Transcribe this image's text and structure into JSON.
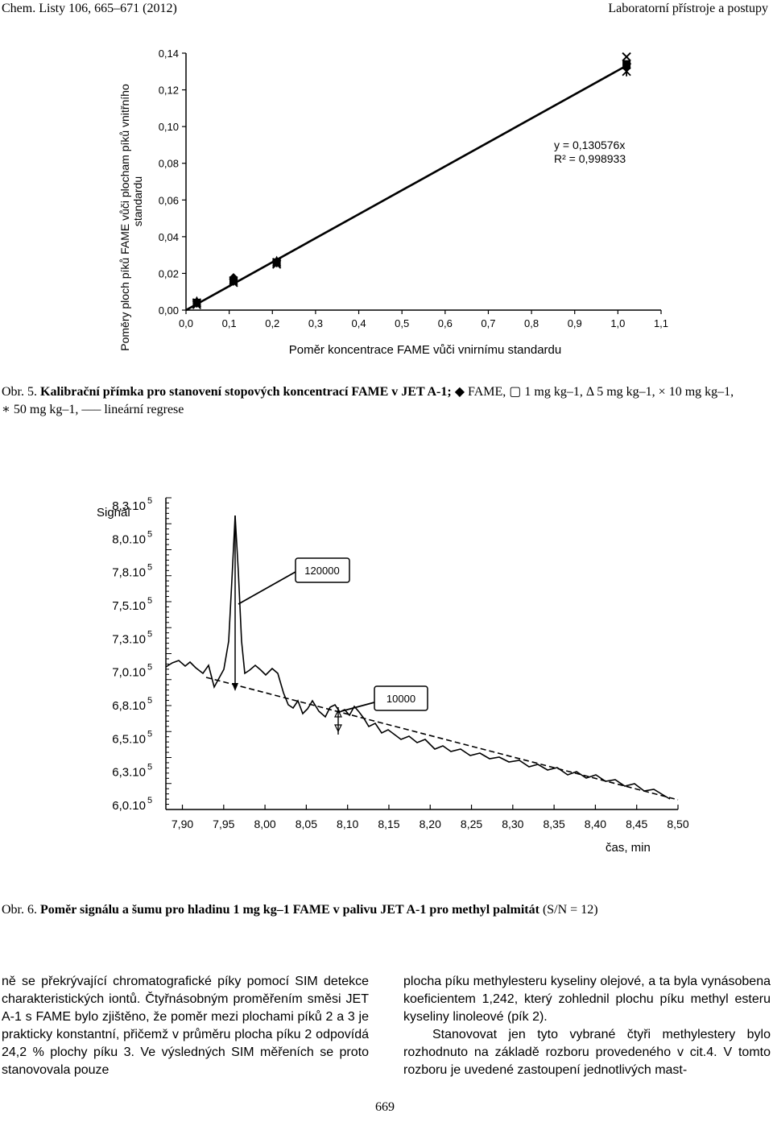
{
  "header": {
    "left": "Chem. Listy 106, 665–671 (2012)",
    "right": "Laboratorní přístroje a postupy"
  },
  "figure5": {
    "ylabel_line1": "Poměry ploch píků FAME vůči plocham píků vnitřního",
    "ylabel_line2": "standardu",
    "xlabel": "Poměr koncentrace FAME vůči vnirnímu standardu",
    "equation": "y = 0,130576x",
    "r2": "R² = 0,998933",
    "caption_prefix": "Obr. 5.",
    "caption_bold": "Kalibrační přímka pro stanovení stopových koncentrací FAME v JET A-1;",
    "caption_line1_rest": "◆ FAME, ▢ 1 mg kg–1, Δ 5 mg kg–1, × 10 mg kg–1,",
    "caption_line2": "∗ 50 mg kg–1, ––– lineární regrese"
  },
  "figure6": {
    "ylabel": "Signál",
    "xlabel": "čas, min",
    "callout_1": "120000",
    "callout_2": "10000",
    "caption_prefix": "Obr. 6.",
    "caption_bold": "Poměr signálu a šumu pro hladinu 1 mg kg–1 FAME v palivu JET A-1 pro methyl palmitát",
    "caption_rest": "(S/N = 12)"
  },
  "body": {
    "left_column": "ně se překrývající chromatografické píky pomocí SIM detekce charakteristických iontů. Čtyřnásobným proměřením směsi JET A-1 s FAME bylo zjištěno, že poměr mezi plochami píků 2 a 3 je prakticky konstantní, přičemž v průměru plocha píku 2 odpovídá 24,2 % plochy píku 3. Ve výsledných SIM měřeních se proto stanovovala pouze",
    "right_column_p1": "plocha píku methylesteru kyseliny olejové, a ta byla vynásobena koeficientem 1,242, který zohlednil plochu píku methyl esteru kyseliny linoleové (pík 2).",
    "right_column_p2": "Stanovovat jen tyto vybrané čtyři methylestery bylo rozhodnuto na základě rozboru provedeného v cit.4. V tomto rozboru je uvedené zastoupení jednotlivých mast-"
  },
  "page_number": "669",
  "chart_data": [
    {
      "type": "scatter",
      "title": "",
      "xlabel": "Poměr koncentrace FAME vůči vnirnímu standardu",
      "ylabel": "Poměry ploch píků FAME vůči plocham píků vnitřního standardu",
      "xlim": [
        0.0,
        1.1
      ],
      "ylim": [
        0.0,
        0.14
      ],
      "x_ticks": [
        "0,0",
        "0,1",
        "0,2",
        "0,3",
        "0,4",
        "0,5",
        "0,6",
        "0,7",
        "0,8",
        "0,9",
        "1,0",
        "1,1"
      ],
      "y_ticks": [
        "0,00",
        "0,02",
        "0,04",
        "0,06",
        "0,08",
        "0,10",
        "0,12",
        "0,14"
      ],
      "series": [
        {
          "name": "FAME",
          "marker": "diamond",
          "points": [
            [
              0.025,
              0.004
            ],
            [
              0.11,
              0.018
            ],
            [
              0.21,
              0.026
            ],
            [
              1.02,
              0.132
            ]
          ]
        },
        {
          "name": "1 mg kg–1",
          "marker": "square",
          "points": [
            [
              0.025,
              0.004
            ],
            [
              0.11,
              0.016
            ],
            [
              0.21,
              0.026
            ],
            [
              1.02,
              0.134
            ]
          ]
        },
        {
          "name": "5 mg kg–1",
          "marker": "triangle",
          "points": [
            [
              0.025,
              0.005
            ],
            [
              0.11,
              0.017
            ],
            [
              0.21,
              0.027
            ],
            [
              1.02,
              0.133
            ]
          ]
        },
        {
          "name": "10 mg kg–1",
          "marker": "x",
          "points": [
            [
              0.025,
              0.003
            ],
            [
              0.11,
              0.015
            ],
            [
              0.21,
              0.025
            ],
            [
              1.02,
              0.138
            ]
          ]
        },
        {
          "name": "50 mg kg–1",
          "marker": "asterisk",
          "points": [
            [
              0.025,
              0.004
            ],
            [
              0.11,
              0.016
            ],
            [
              0.21,
              0.026
            ],
            [
              1.02,
              0.13
            ]
          ]
        }
      ],
      "regression": {
        "slope": 0.130576,
        "intercept": 0,
        "x_range": [
          0.0,
          1.03
        ]
      },
      "annotations": [
        "y = 0,130576x",
        "R² = 0,998933"
      ],
      "grid": false
    },
    {
      "type": "line",
      "title": "",
      "xlabel": "čas, min",
      "ylabel": "Signál",
      "xlim": [
        7.88,
        8.5
      ],
      "x_ticks": [
        "7,90",
        "7,95",
        "8,00",
        "8,05",
        "8,10",
        "8,15",
        "8,20",
        "8,25",
        "8,30",
        "8,35",
        "8,40",
        "8,45",
        "8,50"
      ],
      "y_ticks": [
        "8,3.10^5",
        "8,0.10^5",
        "7,8.10^5",
        "7,5.10^5",
        "7,3.10^5",
        "7,0.10^5",
        "6,8.10^5",
        "6,5.10^5",
        "6,3.10^5",
        "6,0.10^5"
      ],
      "annotations": [
        "120000",
        "10000"
      ],
      "series": [
        {
          "name": "",
          "style": "solid",
          "description": "signal trace with peak near 7,97 min"
        },
        {
          "name": "",
          "style": "dashed",
          "description": "baseline"
        }
      ],
      "grid": false
    }
  ]
}
